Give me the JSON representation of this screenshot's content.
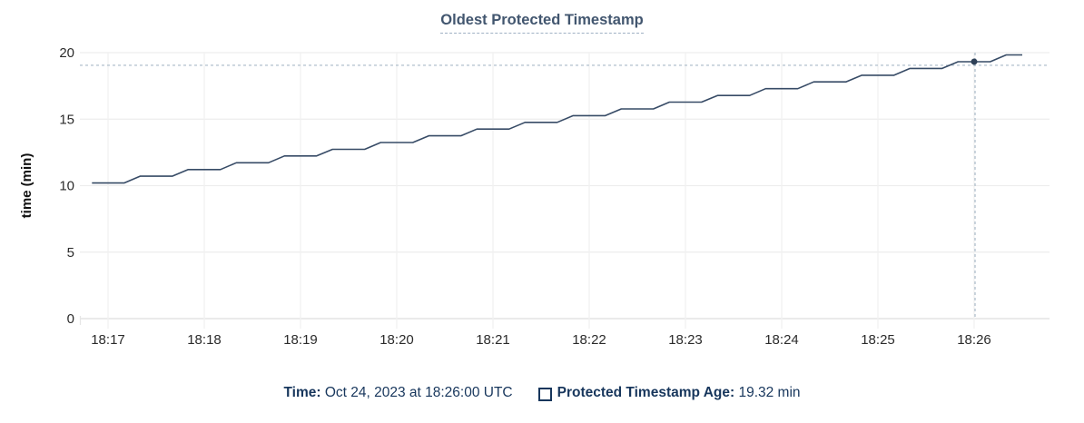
{
  "chart": {
    "title": "Oldest Protected Timestamp"
  },
  "tooltip": {
    "time_label": "Time:",
    "time_value": " Oct 24, 2023 at 18:26:00 UTC",
    "metric_label": "Protected Timestamp Age:",
    "metric_value": " 19.32 min"
  },
  "colors": {
    "title": "#42566f",
    "title_underline": "#9fb1c4",
    "text_navy": "#17365c",
    "line": "#374b66",
    "point": "#2e4057",
    "crosshair": "#a9b9c8",
    "grid": "#ededed",
    "grid_bottom": "#dedede",
    "tick_text": "#2b2b2b",
    "axis_title_text": "#111111"
  },
  "chart_data": {
    "type": "line",
    "title": "Oldest Protected Timestamp",
    "xlabel": "",
    "ylabel": "time (min)",
    "ylim": [
      0,
      20
    ],
    "y_ticks": [
      0,
      5,
      10,
      15,
      20
    ],
    "x_tick_labels": [
      "18:17",
      "18:18",
      "18:19",
      "18:20",
      "18:21",
      "18:22",
      "18:23",
      "18:24",
      "18:25",
      "18:26"
    ],
    "x_unit": "seconds relative to 18:17:00 UTC",
    "grid": true,
    "legend_position": "bottom",
    "series": [
      {
        "name": "Protected Timestamp Age",
        "points": [
          [
            -10,
            10.2
          ],
          [
            0,
            10.2
          ],
          [
            10,
            10.2
          ],
          [
            20,
            10.71
          ],
          [
            30,
            10.71
          ],
          [
            40,
            10.71
          ],
          [
            50,
            11.21
          ],
          [
            60,
            11.21
          ],
          [
            70,
            11.21
          ],
          [
            80,
            11.72
          ],
          [
            90,
            11.72
          ],
          [
            100,
            11.72
          ],
          [
            110,
            12.23
          ],
          [
            120,
            12.23
          ],
          [
            130,
            12.23
          ],
          [
            140,
            12.73
          ],
          [
            150,
            12.73
          ],
          [
            160,
            12.73
          ],
          [
            170,
            13.24
          ],
          [
            180,
            13.24
          ],
          [
            190,
            13.24
          ],
          [
            200,
            13.75
          ],
          [
            210,
            13.75
          ],
          [
            220,
            13.75
          ],
          [
            230,
            14.25
          ],
          [
            240,
            14.25
          ],
          [
            250,
            14.25
          ],
          [
            260,
            14.76
          ],
          [
            270,
            14.76
          ],
          [
            280,
            14.76
          ],
          [
            290,
            15.26
          ],
          [
            300,
            15.26
          ],
          [
            310,
            15.26
          ],
          [
            320,
            15.77
          ],
          [
            330,
            15.77
          ],
          [
            340,
            15.77
          ],
          [
            350,
            16.28
          ],
          [
            360,
            16.28
          ],
          [
            370,
            16.28
          ],
          [
            380,
            16.78
          ],
          [
            390,
            16.78
          ],
          [
            400,
            16.78
          ],
          [
            410,
            17.29
          ],
          [
            420,
            17.29
          ],
          [
            430,
            17.29
          ],
          [
            440,
            17.8
          ],
          [
            450,
            17.8
          ],
          [
            460,
            17.8
          ],
          [
            470,
            18.3
          ],
          [
            480,
            18.3
          ],
          [
            490,
            18.3
          ],
          [
            500,
            18.81
          ],
          [
            510,
            18.81
          ],
          [
            520,
            18.81
          ],
          [
            530,
            19.32
          ],
          [
            540,
            19.32
          ],
          [
            550,
            19.32
          ],
          [
            560,
            19.83
          ],
          [
            570,
            19.83
          ]
        ]
      }
    ],
    "highlighted_point": {
      "t_s": 540,
      "value": 19.32,
      "time_label": "18:26:00",
      "display_value": "19.32 min"
    }
  }
}
